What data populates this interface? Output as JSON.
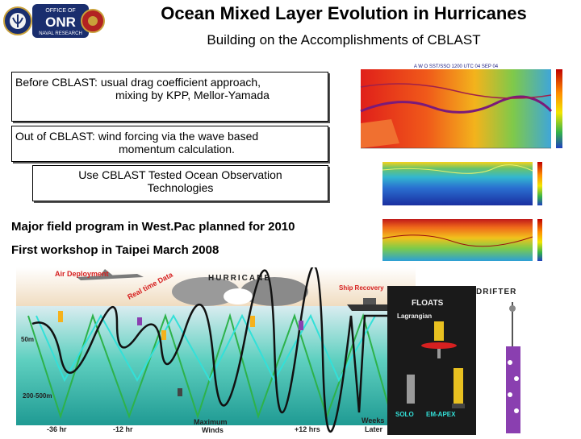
{
  "header": {
    "title": "Ocean Mixed Layer Evolution in Hurricanes",
    "subtitle": "Building on the Accomplishments of CBLAST"
  },
  "logo": {
    "lines": [
      "OFFICE OF",
      "ONR",
      "NAVAL RESEARCH"
    ]
  },
  "boxes": {
    "before": {
      "line1": "Before CBLAST:  usual drag coefficient approach,",
      "line2": "mixing by KPP, Mellor-Yamada"
    },
    "out": {
      "line1": "Out of CBLAST:  wind forcing via the wave based",
      "line2": "momentum calculation."
    },
    "tested": {
      "line1": "Use CBLAST Tested Ocean Observation",
      "line2": "Technologies"
    }
  },
  "notes": {
    "field_program": "Major field program in West.Pac planned for 2010",
    "workshop": "First workshop in Taipei March 2008"
  },
  "sst_map": {
    "title": "A W O  SST/SSO  1200 UTC 04 SEP 04"
  },
  "schematic": {
    "air_deployment": "Air Deployment",
    "hurricane": "HURRICANE",
    "real_time_data": "Real time Data",
    "ship_recovery": "Ship Recovery",
    "depth_50m": "50m",
    "depth_200_500m": "200-500m",
    "axis_labels": [
      "-36 hr",
      "-12 hr",
      "Maximum",
      "Winds",
      "+12 hrs",
      "Weeks",
      "Later"
    ]
  },
  "floats": {
    "floats_label": "FLOATS",
    "drifter_label": "DRIFTER",
    "lagrangian_label": "Lagrangian",
    "solo_label": "SOLO",
    "em_apex_label": "EM-APEX"
  },
  "colors": {
    "ocean_top": "#d9ecf0",
    "ocean_mid": "#45c3b8",
    "ocean_deep": "#1f9a93",
    "green_track": "#2db24a",
    "cyan_track": "#33e0d8",
    "label_red": "#d62020"
  }
}
